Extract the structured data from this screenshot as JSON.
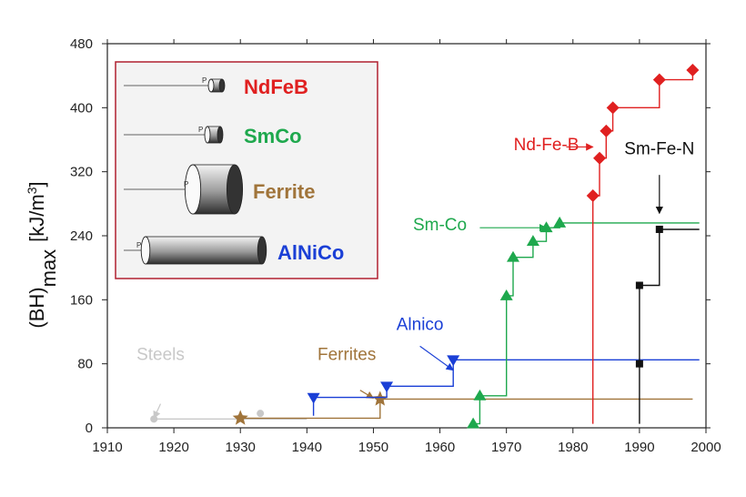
{
  "chart_data": {
    "type": "line",
    "xlim": [
      1910,
      2000
    ],
    "ylim": [
      0,
      480
    ],
    "x_ticks": [
      "1910",
      "1920",
      "1930",
      "1940",
      "1950",
      "1960",
      "1970",
      "1980",
      "1990",
      "2000"
    ],
    "y_ticks": [
      "0",
      "80",
      "160",
      "240",
      "320",
      "400",
      "480"
    ],
    "ylabel_main": "(BH)",
    "ylabel_sub": "max",
    "ylabel_unit": "[kJ/m",
    "ylabel_exp": "3",
    "ylabel_close": "]",
    "grid": false,
    "series": [
      {
        "key": "steels",
        "color": "#c8c8c8",
        "marker": "circle",
        "annotation": {
          "text": "Steels",
          "x": 1918,
          "y": 85
        },
        "arrow": {
          "from": [
            1918,
            30
          ],
          "to": [
            1917,
            12
          ]
        },
        "points": [
          [
            1917,
            11
          ],
          [
            1930,
            13
          ],
          [
            1933,
            18
          ]
        ],
        "path": [
          [
            1917,
            11
          ],
          [
            1940,
            11
          ]
        ]
      },
      {
        "key": "ferrites",
        "color": "#a0743a",
        "marker": "star",
        "annotation": {
          "text": "Ferrites",
          "x": 1946,
          "y": 85
        },
        "arrow": {
          "from": [
            1948,
            47
          ],
          "to": [
            1950,
            37
          ]
        },
        "points": [
          [
            1930,
            12
          ],
          [
            1951,
            36
          ]
        ],
        "path": [
          [
            1930,
            12
          ],
          [
            1951,
            12
          ],
          [
            1951,
            36
          ],
          [
            1998,
            36
          ]
        ]
      },
      {
        "key": "alnico",
        "color": "#1a3fd6",
        "marker": "triangle-down",
        "annotation": {
          "text": "Alnico",
          "x": 1957,
          "y": 122
        },
        "arrow": {
          "from": [
            1957,
            102
          ],
          "to": [
            1962,
            72
          ]
        },
        "points": [
          [
            1941,
            38
          ],
          [
            1952,
            52
          ],
          [
            1962,
            85
          ]
        ],
        "path": [
          [
            1941,
            15
          ],
          [
            1941,
            38
          ],
          [
            1952,
            38
          ],
          [
            1952,
            52
          ],
          [
            1962,
            52
          ],
          [
            1962,
            85
          ],
          [
            1999,
            85
          ]
        ]
      },
      {
        "key": "smco",
        "color": "#1ea84d",
        "marker": "triangle-up",
        "annotation": {
          "text": "Sm-Co",
          "x": 1960,
          "y": 247
        },
        "arrow": {
          "from": [
            1966,
            250
          ],
          "to": [
            1976,
            250
          ]
        },
        "points": [
          [
            1965,
            5
          ],
          [
            1966,
            40
          ],
          [
            1970,
            165
          ],
          [
            1971,
            213
          ],
          [
            1974,
            233
          ],
          [
            1976,
            250
          ],
          [
            1978,
            256
          ]
        ],
        "path": [
          [
            1965,
            5
          ],
          [
            1966,
            5
          ],
          [
            1966,
            40
          ],
          [
            1970,
            40
          ],
          [
            1970,
            165
          ],
          [
            1971,
            165
          ],
          [
            1971,
            213
          ],
          [
            1974,
            213
          ],
          [
            1974,
            233
          ],
          [
            1976,
            233
          ],
          [
            1976,
            250
          ],
          [
            1978,
            250
          ],
          [
            1978,
            256
          ],
          [
            1999,
            256
          ]
        ]
      },
      {
        "key": "ndfeb",
        "color": "#e02020",
        "marker": "diamond",
        "annotation": {
          "text": "Nd-Fe-B",
          "x": 1976,
          "y": 347
        },
        "arrow": {
          "from": [
            1979,
            351
          ],
          "to": [
            1983,
            351
          ]
        },
        "points": [
          [
            1983,
            290
          ],
          [
            1984,
            337
          ],
          [
            1985,
            371
          ],
          [
            1986,
            400
          ],
          [
            1993,
            435
          ],
          [
            1998,
            447
          ]
        ],
        "path": [
          [
            1983,
            5
          ],
          [
            1983,
            290
          ],
          [
            1984,
            290
          ],
          [
            1984,
            337
          ],
          [
            1985,
            337
          ],
          [
            1985,
            371
          ],
          [
            1986,
            371
          ],
          [
            1986,
            400
          ],
          [
            1993,
            400
          ],
          [
            1993,
            435
          ],
          [
            1998,
            435
          ],
          [
            1998,
            447
          ]
        ]
      },
      {
        "key": "smfen",
        "color": "#111111",
        "marker": "square",
        "annotation": {
          "text": "Sm-Fe-N",
          "x": 1993,
          "y": 342
        },
        "arrow": {
          "from": [
            1993,
            316
          ],
          "to": [
            1993,
            268
          ]
        },
        "points": [
          [
            1990,
            80
          ],
          [
            1990,
            178
          ],
          [
            1993,
            248
          ]
        ],
        "path": [
          [
            1990,
            5
          ],
          [
            1990,
            178
          ],
          [
            1993,
            178
          ],
          [
            1993,
            248
          ],
          [
            1999,
            248
          ]
        ]
      }
    ]
  },
  "inset": {
    "items": [
      {
        "label": "NdFeB",
        "color": "#e02020",
        "shape_label": "P"
      },
      {
        "label": "SmCo",
        "color": "#1ea84d",
        "shape_label": "P"
      },
      {
        "label": "Ferrite",
        "color": "#a0743a",
        "shape_label": "P"
      },
      {
        "label": "AlNiCo",
        "color": "#1a3fd6",
        "shape_label": "P"
      }
    ],
    "border_color": "#b02030"
  }
}
